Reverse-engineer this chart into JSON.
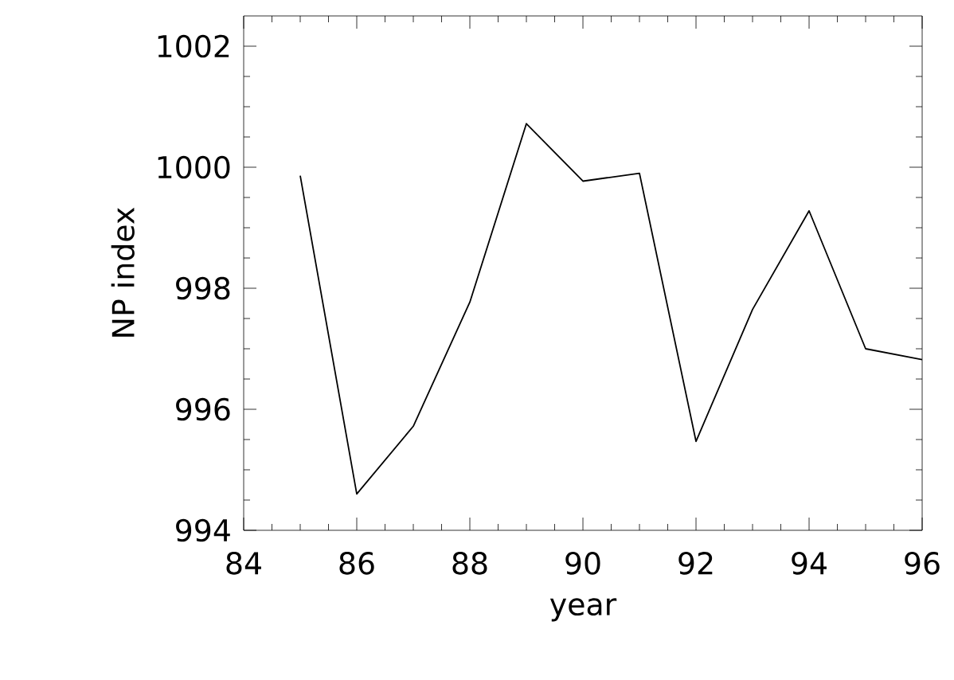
{
  "chart_data": {
    "type": "line",
    "xlabel": "year",
    "ylabel": "NP index",
    "x": [
      85,
      86,
      87,
      88,
      89,
      90,
      91,
      92,
      93,
      94,
      95,
      96
    ],
    "values": [
      999.86,
      994.6,
      995.72,
      997.77,
      1000.72,
      999.77,
      999.9,
      995.47,
      997.65,
      999.28,
      997.0,
      996.82
    ],
    "color": "#000000",
    "xlim": [
      84,
      96
    ],
    "ylim": [
      994,
      1002.5
    ],
    "xticks": [
      84,
      86,
      88,
      90,
      92,
      94,
      96
    ],
    "yticks": [
      994,
      996,
      998,
      1000,
      1002
    ],
    "grid": false,
    "marker": "none",
    "line_style": "solid"
  }
}
